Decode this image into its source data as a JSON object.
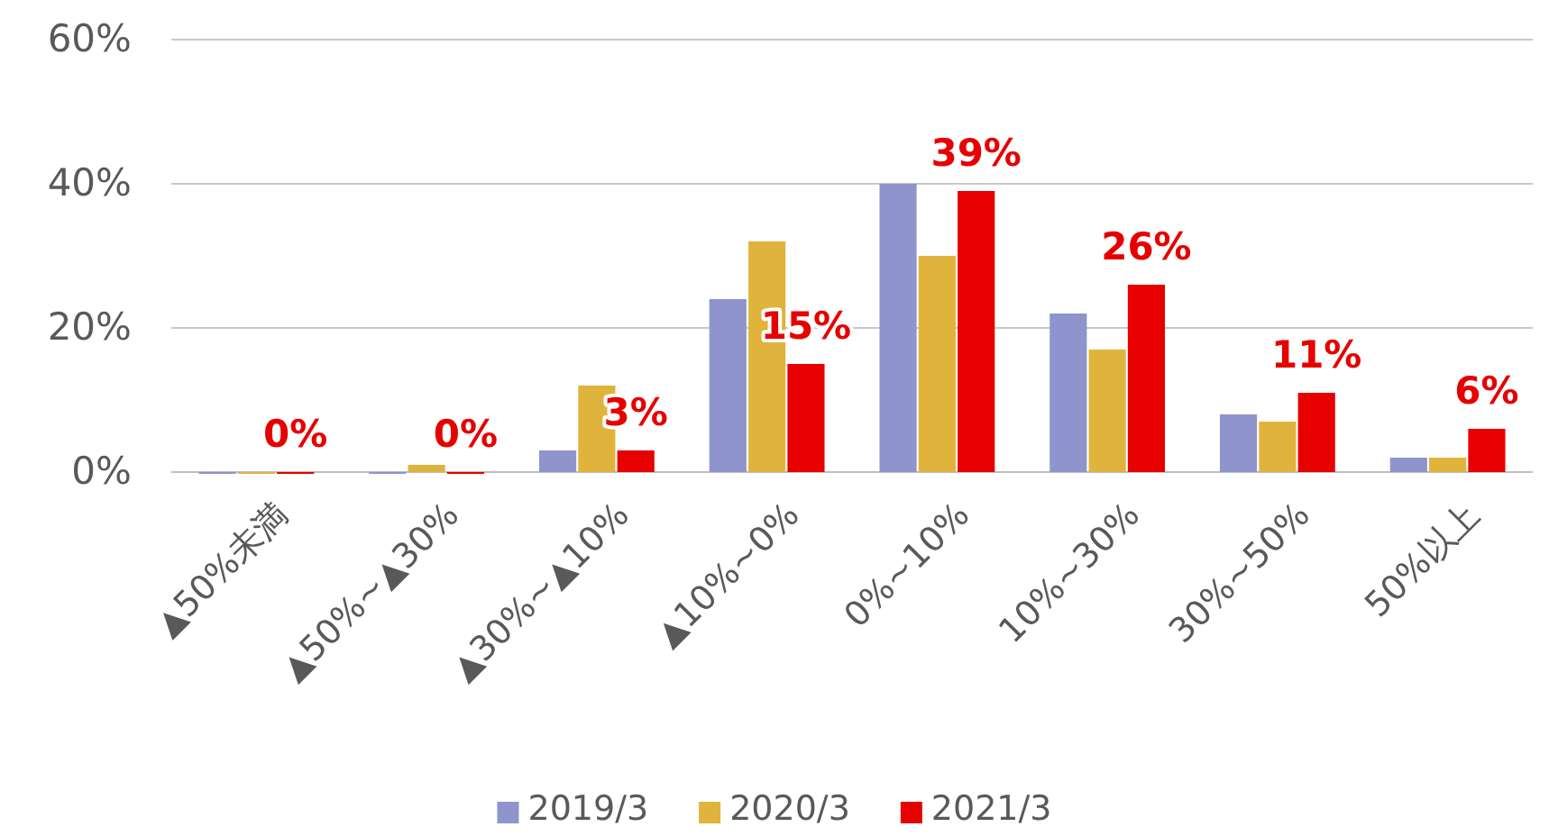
{
  "chart_data": {
    "type": "bar",
    "categories": [
      "▲50%未満",
      "▲50%~▲30%",
      "▲30%~▲10%",
      "▲10%~0%",
      "0%~10%",
      "10%~30%",
      "30%~50%",
      "50%以上"
    ],
    "series": [
      {
        "name": "2019/3",
        "color": "#8f94cc",
        "values": [
          0,
          0,
          3,
          24,
          40,
          22,
          8,
          2
        ]
      },
      {
        "name": "2020/3",
        "color": "#e0b43c",
        "values": [
          0,
          1,
          12,
          32,
          30,
          17,
          7,
          2
        ]
      },
      {
        "name": "2021/3",
        "color": "#e60000",
        "values": [
          0,
          0,
          3,
          15,
          39,
          26,
          11,
          6
        ],
        "value_labels": [
          "0%",
          "0%",
          "3%",
          "15%",
          "39%",
          "26%",
          "11%",
          "6%"
        ]
      }
    ],
    "ylim": [
      0,
      60
    ],
    "yticks": [
      {
        "value": 0,
        "label": "0%"
      },
      {
        "value": 20,
        "label": "20%"
      },
      {
        "value": 40,
        "label": "40%"
      },
      {
        "value": 60,
        "label": "60%"
      }
    ],
    "grid": "y",
    "legend": "bottom"
  }
}
